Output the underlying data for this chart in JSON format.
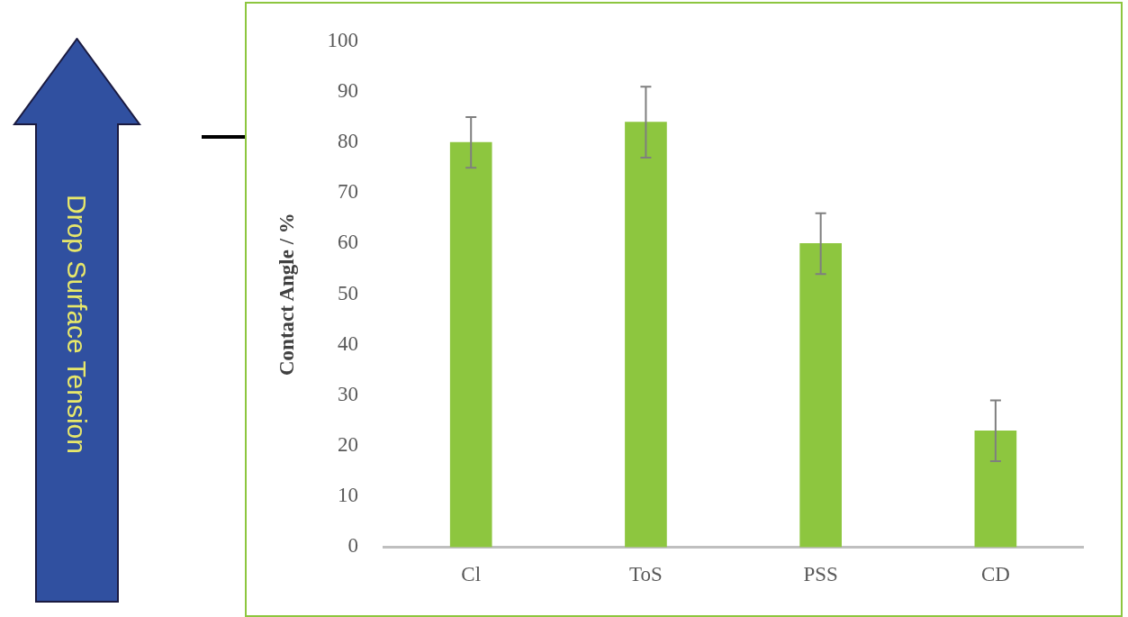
{
  "chart_data": {
    "type": "bar",
    "ylabel": "Contact Angle / %",
    "categories": [
      "Cl",
      "ToS",
      "PSS",
      "CD"
    ],
    "values": [
      80,
      84,
      60,
      23
    ],
    "errors": [
      5,
      7,
      6,
      6
    ],
    "color": "#8dc63f",
    "ylim": [
      0,
      100
    ],
    "yticks": [
      0,
      10,
      20,
      30,
      40,
      50,
      60,
      70,
      80,
      90,
      100
    ],
    "grid": false,
    "legend": false,
    "annotations": [
      "Drop Surface Tension"
    ]
  }
}
